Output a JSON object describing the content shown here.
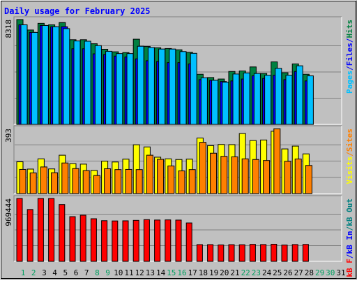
{
  "chart_data": [
    {
      "type": "bar",
      "title": "Daily usage for February 2025",
      "categories": [
        "1",
        "2",
        "3",
        "4",
        "5",
        "6",
        "7",
        "8",
        "9",
        "10",
        "11",
        "12",
        "13",
        "14",
        "15",
        "16",
        "17",
        "18",
        "19",
        "20",
        "21",
        "22",
        "23",
        "24",
        "25",
        "26",
        "27",
        "28",
        "29",
        "30",
        "31"
      ],
      "weekend_day_labels": [
        "1",
        "2",
        "8",
        "9",
        "15",
        "16",
        "22",
        "23",
        "29",
        "30"
      ],
      "y_max_label": "8318",
      "ylim": [
        0,
        8318
      ],
      "right_axis_labels": [
        {
          "text": "Pages",
          "color": "#00c0ff"
        },
        {
          "text": "/",
          "color": "#0000ff"
        },
        {
          "text": "Files",
          "color": "#0000ff"
        },
        {
          "text": "/",
          "color": "#0000ff"
        },
        {
          "text": "Hits",
          "color": "#008040"
        }
      ],
      "series": [
        {
          "name": "Hits",
          "color": "#008040",
          "values": [
            8318,
            7490,
            8020,
            7900,
            8080,
            6720,
            6720,
            6400,
            5960,
            5760,
            5700,
            6760,
            6180,
            6080,
            6020,
            5920,
            5720,
            3980,
            3720,
            3600,
            4200,
            4240,
            4560,
            4040,
            4960,
            4100,
            4800,
            3980,
            0,
            0,
            0
          ]
        },
        {
          "name": "Files",
          "color": "#0000ff",
          "values": [
            7900,
            7300,
            7850,
            7750,
            7750,
            6000,
            6000,
            5600,
            5550,
            5420,
            5350,
            5200,
            5050,
            5000,
            4900,
            4900,
            4800,
            3550,
            3500,
            3400,
            3450,
            3600,
            3850,
            3650,
            3900,
            3550,
            4200,
            3450,
            0,
            0,
            0
          ]
        },
        {
          "name": "Pages",
          "color": "#00c0ff",
          "values": [
            7900,
            7300,
            7850,
            7750,
            7600,
            6620,
            6600,
            6250,
            5800,
            5620,
            5620,
            6200,
            6100,
            5980,
            5980,
            5780,
            5640,
            3700,
            3500,
            3350,
            4000,
            4080,
            4040,
            3900,
            4450,
            3900,
            4650,
            3850,
            0,
            0,
            0
          ]
        }
      ]
    },
    {
      "type": "bar",
      "y_max_label": "393",
      "ylim": [
        0,
        393
      ],
      "right_axis_labels": [
        {
          "text": "Visits",
          "color": "#ffff00"
        },
        {
          "text": "/",
          "color": "#ff8000"
        },
        {
          "text": "Sites",
          "color": "#ff8000"
        }
      ],
      "series": [
        {
          "name": "Visits",
          "color": "#ffff00",
          "values": [
            192,
            148,
            210,
            149,
            232,
            181,
            178,
            140,
            196,
            191,
            208,
            295,
            282,
            220,
            210,
            206,
            208,
            336,
            290,
            297,
            296,
            363,
            321,
            324,
            377,
            270,
            287,
            240,
            0,
            0,
            0
          ]
        },
        {
          "name": "Sites",
          "color": "#ff8000",
          "values": [
            146,
            125,
            161,
            126,
            185,
            151,
            139,
            109,
            150,
            145,
            146,
            145,
            232,
            207,
            167,
            137,
            145,
            310,
            244,
            225,
            222,
            210,
            206,
            200,
            392,
            195,
            209,
            170,
            0,
            0,
            0
          ]
        }
      ]
    },
    {
      "type": "bar",
      "y_max_label": "969444",
      "ylim": [
        0,
        969444
      ],
      "right_axis_labels": [
        {
          "text": "kB F",
          "color": "#ff0000"
        },
        {
          "text": "/",
          "color": "#0000ff"
        },
        {
          "text": "kB In",
          "color": "#0000ff"
        },
        {
          "text": "/",
          "color": "#008080"
        },
        {
          "text": "kB Out",
          "color": "#008080"
        }
      ],
      "series": [
        {
          "name": "kB F",
          "color": "#ff0000",
          "values": [
            969444,
            799000,
            969444,
            969444,
            876000,
            689000,
            711000,
            657000,
            627000,
            623000,
            625000,
            632000,
            643000,
            637000,
            639000,
            636000,
            592000,
            258000,
            258000,
            253000,
            257000,
            256000,
            262000,
            259000,
            264000,
            251000,
            259000,
            261000,
            0,
            0,
            0
          ]
        }
      ]
    }
  ]
}
